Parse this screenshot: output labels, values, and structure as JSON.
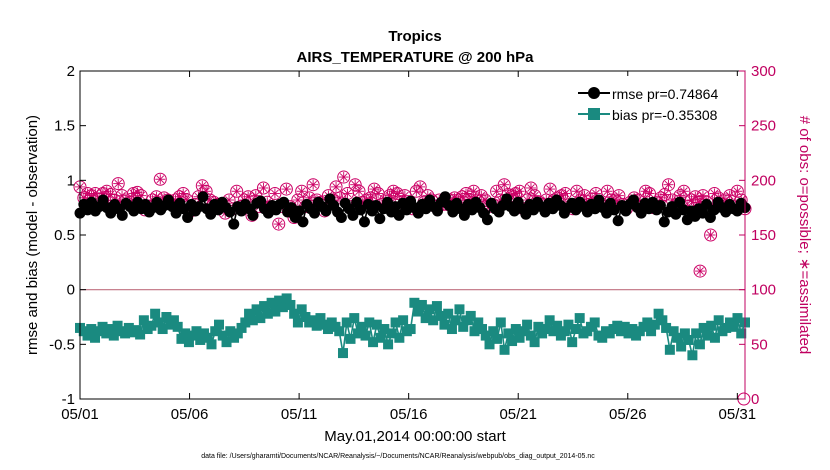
{
  "chart_data": {
    "type": "line",
    "title": "Tropics",
    "subtitle": "AIRS_TEMPERATURE @ 200 hPa",
    "xlabel": "May.01,2014 00:00:00 start",
    "ylabel_left": "rmse and bias (model - observation)",
    "ylabel_right": "# of obs: o=possible; ∗=assimilated",
    "footnote": "data file: /Users/gharamti/Documents/NCAR/Reanalysis/~/Documents/NCAR/Reanalysis/webpub/obs_diag_output_2014-05.nc",
    "x_ticks": [
      {
        "day": 1,
        "label": "05/01"
      },
      {
        "day": 6,
        "label": "05/06"
      },
      {
        "day": 11,
        "label": "05/11"
      },
      {
        "day": 16,
        "label": "05/16"
      },
      {
        "day": 21,
        "label": "05/21"
      },
      {
        "day": 26,
        "label": "05/26"
      },
      {
        "day": 31,
        "label": "05/31"
      }
    ],
    "xlim": [
      1,
      31.35
    ],
    "ylim_left": [
      -1,
      2
    ],
    "yticks_left": [
      "-1",
      "-0.5",
      "0",
      "0.5",
      "1",
      "1.5",
      "2"
    ],
    "ylim_right": [
      0,
      300
    ],
    "yticks_right": [
      "0",
      "50",
      "100",
      "150",
      "200",
      "250",
      "300"
    ],
    "zero_line": 0,
    "grid": false,
    "legend_position": "top-right",
    "legend": [
      {
        "label": "rmse pr=0.74864",
        "color": "#000000",
        "marker": "circle"
      },
      {
        "label": "bias pr=-0.35308",
        "color": "#1a8a80",
        "marker": "square"
      }
    ],
    "series": [
      {
        "name": "rmse",
        "axis": "left",
        "color": "#000000",
        "marker": "circle",
        "values": [
          0.7,
          0.78,
          0.73,
          0.8,
          0.72,
          0.76,
          0.82,
          0.75,
          0.7,
          0.78,
          0.74,
          0.68,
          0.79,
          0.76,
          0.72,
          0.8,
          0.74,
          0.78,
          0.71,
          0.75,
          0.8,
          0.73,
          0.77,
          0.82,
          0.76,
          0.7,
          0.79,
          0.74,
          0.66,
          0.78,
          0.72,
          0.76,
          0.85,
          0.74,
          0.69,
          0.78,
          0.73,
          0.8,
          0.75,
          0.71,
          0.6,
          0.76,
          0.72,
          0.78,
          0.74,
          0.68,
          0.79,
          0.81,
          0.74,
          0.7,
          0.77,
          0.73,
          0.78,
          0.8,
          0.71,
          0.75,
          0.66,
          0.72,
          0.62,
          0.78,
          0.74,
          0.7,
          0.8,
          0.76,
          0.72,
          0.83,
          0.77,
          0.71,
          0.66,
          0.79,
          0.74,
          0.68,
          0.8,
          0.73,
          0.62,
          0.78,
          0.72,
          0.77,
          0.65,
          0.74,
          0.8,
          0.71,
          0.76,
          0.68,
          0.79,
          0.73,
          0.81,
          0.75,
          0.7,
          0.78,
          0.74,
          0.82,
          0.76,
          0.72,
          0.8,
          0.85,
          0.77,
          0.71,
          0.79,
          0.74,
          0.68,
          0.78,
          0.73,
          0.8,
          0.75,
          0.7,
          0.64,
          0.79,
          0.74,
          0.71,
          0.77,
          0.83,
          0.76,
          0.72,
          0.8,
          0.74,
          0.69,
          0.78,
          0.73,
          0.8,
          0.76,
          0.71,
          0.79,
          0.74,
          0.82,
          0.77,
          0.7,
          0.75,
          0.79,
          0.73,
          0.8,
          0.76,
          0.71,
          0.78,
          0.74,
          0.82,
          0.75,
          0.7,
          0.79,
          0.73,
          0.63,
          0.77,
          0.72,
          0.78,
          0.82,
          0.75,
          0.7,
          0.79,
          0.74,
          0.8,
          0.73,
          0.77,
          0.62,
          0.71,
          0.76,
          0.69,
          0.8,
          0.73,
          0.64,
          0.72,
          0.67,
          0.74,
          0.7,
          0.78,
          0.66,
          0.73,
          0.8,
          0.75,
          0.71,
          0.78,
          0.74,
          0.72,
          0.79,
          0.75
        ]
      },
      {
        "name": "bias",
        "axis": "left",
        "color": "#1a8a80",
        "marker": "square",
        "values": [
          -0.35,
          -0.38,
          -0.42,
          -0.36,
          -0.44,
          -0.38,
          -0.34,
          -0.4,
          -0.36,
          -0.42,
          -0.33,
          -0.38,
          -0.4,
          -0.35,
          -0.39,
          -0.37,
          -0.41,
          -0.28,
          -0.36,
          -0.33,
          -0.22,
          -0.3,
          -0.36,
          -0.25,
          -0.32,
          -0.28,
          -0.34,
          -0.45,
          -0.4,
          -0.48,
          -0.42,
          -0.38,
          -0.46,
          -0.4,
          -0.44,
          -0.5,
          -0.38,
          -0.32,
          -0.42,
          -0.48,
          -0.38,
          -0.44,
          -0.4,
          -0.35,
          -0.3,
          -0.22,
          -0.28,
          -0.18,
          -0.26,
          -0.15,
          -0.22,
          -0.12,
          -0.2,
          -0.1,
          -0.16,
          -0.08,
          -0.14,
          -0.22,
          -0.3,
          -0.18,
          -0.25,
          -0.3,
          -0.28,
          -0.33,
          -0.26,
          -0.32,
          -0.36,
          -0.3,
          -0.34,
          -0.38,
          -0.58,
          -0.3,
          -0.45,
          -0.26,
          -0.4,
          -0.34,
          -0.42,
          -0.3,
          -0.48,
          -0.32,
          -0.44,
          -0.36,
          -0.5,
          -0.4,
          -0.3,
          -0.44,
          -0.28,
          -0.38,
          -0.36,
          -0.12,
          -0.2,
          -0.14,
          -0.26,
          -0.18,
          -0.28,
          -0.15,
          -0.24,
          -0.32,
          -0.22,
          -0.36,
          -0.28,
          -0.18,
          -0.34,
          -0.28,
          -0.24,
          -0.38,
          -0.3,
          -0.36,
          -0.42,
          -0.5,
          -0.38,
          -0.45,
          -0.3,
          -0.55,
          -0.4,
          -0.47,
          -0.36,
          -0.44,
          -0.38,
          -0.32,
          -0.42,
          -0.48,
          -0.34,
          -0.4,
          -0.36,
          -0.28,
          -0.38,
          -0.33,
          -0.42,
          -0.38,
          -0.32,
          -0.48,
          -0.36,
          -0.26,
          -0.4,
          -0.38,
          -0.34,
          -0.3,
          -0.42,
          -0.44,
          -0.38,
          -0.4,
          -0.36,
          -0.33,
          -0.38,
          -0.34,
          -0.4,
          -0.36,
          -0.42,
          -0.38,
          -0.34,
          -0.3,
          -0.38,
          -0.32,
          -0.22,
          -0.28,
          -0.35,
          -0.55,
          -0.38,
          -0.44,
          -0.52,
          -0.4,
          -0.46,
          -0.6,
          -0.4,
          -0.5,
          -0.35,
          -0.42,
          -0.33,
          -0.44,
          -0.28,
          -0.38,
          -0.35,
          -0.3,
          -0.34,
          -0.26,
          -0.4,
          -0.3
        ]
      },
      {
        "name": "possible",
        "axis": "right",
        "color": "#cc0066",
        "marker": "open-circle",
        "values": [
          194,
          184,
          188,
          186,
          188,
          183,
          188,
          190,
          187,
          182,
          197,
          186,
          182,
          180,
          188,
          189,
          186,
          173,
          176,
          182,
          185,
          201,
          184,
          182,
          178,
          182,
          185,
          188,
          182,
          172,
          178,
          185,
          195,
          190,
          182,
          180,
          178,
          178,
          170,
          182,
          174,
          190,
          176,
          182,
          185,
          168,
          186,
          176,
          193,
          180,
          176,
          188,
          160,
          176,
          192,
          176,
          166,
          182,
          190,
          176,
          184,
          196,
          182,
          180,
          172,
          186,
          182,
          194,
          184,
          203,
          188,
          176,
          196,
          190,
          180,
          182,
          184,
          192,
          188,
          178,
          182,
          186,
          190,
          188,
          180,
          186,
          176,
          174,
          190,
          194,
          180,
          186,
          182,
          176,
          182,
          178,
          178,
          182,
          184,
          182,
          185,
          188,
          182,
          190,
          182,
          186,
          182,
          176,
          178,
          190,
          182,
          196,
          187,
          186,
          188,
          190,
          174,
          182,
          193,
          186,
          180,
          178,
          182,
          192,
          182,
          184,
          186,
          188,
          176,
          174,
          190,
          182,
          186,
          178,
          183,
          188,
          180,
          176,
          190,
          182,
          182,
          186,
          178,
          174,
          180,
          184,
          182,
          176,
          190,
          188,
          175,
          180,
          184,
          187,
          196,
          182,
          178,
          186,
          190,
          176,
          182,
          185,
          180,
          186,
          180,
          150,
          188,
          184,
          178,
          182,
          186,
          176,
          190,
          182,
          174
        ]
      },
      {
        "name": "assimilated",
        "axis": "right",
        "color": "#cc0066",
        "marker": "asterisk",
        "values": [
          194,
          184,
          188,
          186,
          188,
          183,
          188,
          190,
          187,
          182,
          197,
          186,
          182,
          180,
          188,
          189,
          186,
          173,
          176,
          182,
          185,
          201,
          184,
          182,
          178,
          182,
          185,
          188,
          182,
          172,
          178,
          185,
          195,
          190,
          182,
          180,
          178,
          178,
          170,
          182,
          174,
          190,
          176,
          182,
          185,
          168,
          186,
          176,
          193,
          180,
          176,
          188,
          160,
          176,
          192,
          176,
          166,
          182,
          190,
          176,
          184,
          196,
          182,
          180,
          172,
          186,
          182,
          194,
          184,
          203,
          188,
          176,
          196,
          190,
          180,
          182,
          184,
          192,
          188,
          178,
          182,
          186,
          190,
          188,
          180,
          186,
          176,
          174,
          190,
          194,
          180,
          186,
          182,
          176,
          182,
          178,
          178,
          182,
          184,
          182,
          185,
          188,
          182,
          190,
          182,
          186,
          182,
          176,
          178,
          190,
          182,
          196,
          187,
          186,
          188,
          190,
          174,
          182,
          193,
          186,
          180,
          178,
          182,
          192,
          182,
          184,
          186,
          188,
          176,
          174,
          190,
          182,
          186,
          178,
          183,
          188,
          180,
          176,
          190,
          182,
          182,
          186,
          178,
          174,
          180,
          184,
          182,
          176,
          190,
          188,
          175,
          180,
          184,
          187,
          196,
          182,
          178,
          186,
          190,
          176,
          182,
          185,
          180,
          186,
          180,
          150,
          188,
          184,
          178,
          182,
          186,
          176,
          190,
          182,
          174
        ]
      },
      {
        "name": "outlier-possible",
        "axis": "right",
        "color": "#cc0066",
        "marker": "open-circle",
        "points": [
          [
            29.3,
            117
          ],
          [
            31.3,
            0
          ]
        ]
      }
    ]
  }
}
